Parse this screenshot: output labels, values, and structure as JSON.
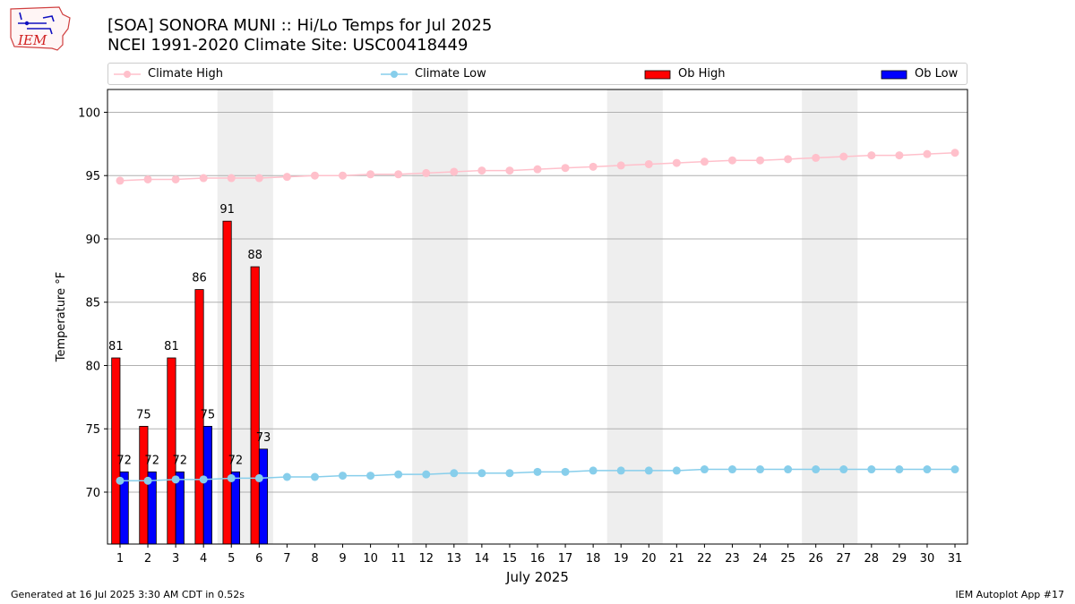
{
  "header": {
    "title_line1": "[SOA] SONORA MUNI :: Hi/Lo Temps for Jul 2025",
    "title_line2": "NCEI 1991-2020 Climate Site: USC00418449",
    "logo_text": "IEM"
  },
  "legend": {
    "climate_high": "Climate High",
    "climate_low": "Climate Low",
    "ob_high": "Ob High",
    "ob_low": "Ob Low"
  },
  "footer": {
    "generated": "Generated at 16 Jul 2025 3:30 AM CDT in 0.52s",
    "app": "IEM Autoplot App #17"
  },
  "colors": {
    "climate_high": "#ffc0cb",
    "climate_low": "#87ceeb",
    "ob_high": "#ff0000",
    "ob_low": "#0000ff",
    "weekend_shade": "#eeeeee",
    "grid": "#b0b0b0"
  },
  "chart_data": {
    "type": "bar",
    "xlabel": "July 2025",
    "ylabel": "Temperature °F",
    "ylim": [
      65.9,
      101.8
    ],
    "yticks": [
      70,
      75,
      80,
      85,
      90,
      95,
      100
    ],
    "grid": "horizontal",
    "legend_position": "top",
    "days": [
      1,
      2,
      3,
      4,
      5,
      6,
      7,
      8,
      9,
      10,
      11,
      12,
      13,
      14,
      15,
      16,
      17,
      18,
      19,
      20,
      21,
      22,
      23,
      24,
      25,
      26,
      27,
      28,
      29,
      30,
      31
    ],
    "weekend_spans": [
      [
        5,
        6
      ],
      [
        12,
        13
      ],
      [
        19,
        20
      ],
      [
        26,
        27
      ]
    ],
    "ob_high": [
      80.6,
      75.2,
      80.6,
      86.0,
      91.4,
      87.8
    ],
    "ob_high_labels": [
      "81",
      "75",
      "81",
      "86",
      "91",
      "88"
    ],
    "ob_low": [
      71.6,
      71.6,
      71.6,
      75.2,
      71.6,
      73.4
    ],
    "ob_low_labels": [
      "72",
      "72",
      "72",
      "75",
      "72",
      "73"
    ],
    "climate_high": [
      94.6,
      94.7,
      94.7,
      94.8,
      94.8,
      94.8,
      94.9,
      95.0,
      95.0,
      95.1,
      95.1,
      95.2,
      95.3,
      95.4,
      95.4,
      95.5,
      95.6,
      95.7,
      95.8,
      95.9,
      96.0,
      96.1,
      96.2,
      96.2,
      96.3,
      96.4,
      96.5,
      96.6,
      96.6,
      96.7,
      96.8
    ],
    "climate_low": [
      70.9,
      70.9,
      71.0,
      71.0,
      71.1,
      71.1,
      71.2,
      71.2,
      71.3,
      71.3,
      71.4,
      71.4,
      71.5,
      71.5,
      71.5,
      71.6,
      71.6,
      71.7,
      71.7,
      71.7,
      71.7,
      71.8,
      71.8,
      71.8,
      71.8,
      71.8,
      71.8,
      71.8,
      71.8,
      71.8,
      71.8
    ]
  }
}
